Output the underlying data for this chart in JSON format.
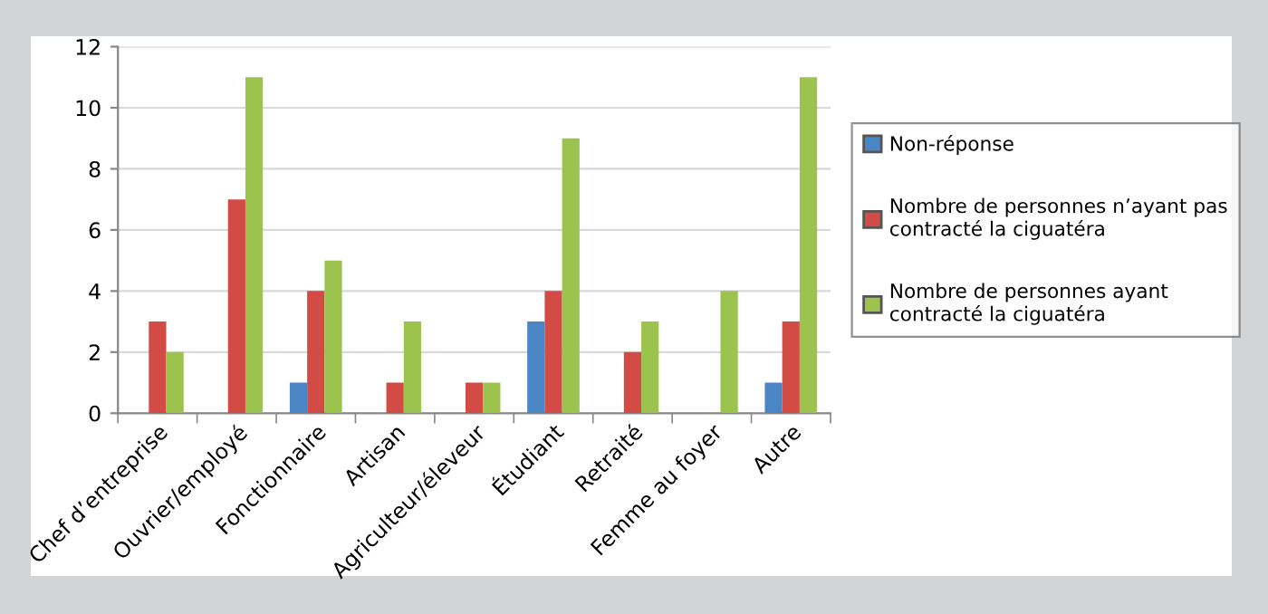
{
  "chart_data": {
    "type": "bar",
    "categories": [
      "Chef d’entreprise",
      "Ouvrier/employé",
      "Fonctionnaire",
      "Artisan",
      "Agriculteur/éleveur",
      "Étudiant",
      "Retraité",
      "Femme au foyer",
      "Autre"
    ],
    "series": [
      {
        "name": "Non-réponse",
        "color": "#4a86c5",
        "values": [
          null,
          null,
          1,
          null,
          null,
          3,
          null,
          null,
          1
        ]
      },
      {
        "name": "Nombre de personnes n’ayant pas contracté la ciguatéra",
        "color": "#d24b45",
        "values": [
          3,
          7,
          4,
          1,
          1,
          4,
          2,
          null,
          3
        ]
      },
      {
        "name": "Nombre de personnes ayant contracté la ciguatéra",
        "color": "#9dc34f",
        "values": [
          2,
          11,
          5,
          3,
          1,
          9,
          3,
          4,
          11
        ]
      }
    ],
    "ylim": [
      0,
      12
    ],
    "yticks": [
      0,
      2,
      4,
      6,
      8,
      10,
      12
    ],
    "grid": "y",
    "legend": "right"
  }
}
